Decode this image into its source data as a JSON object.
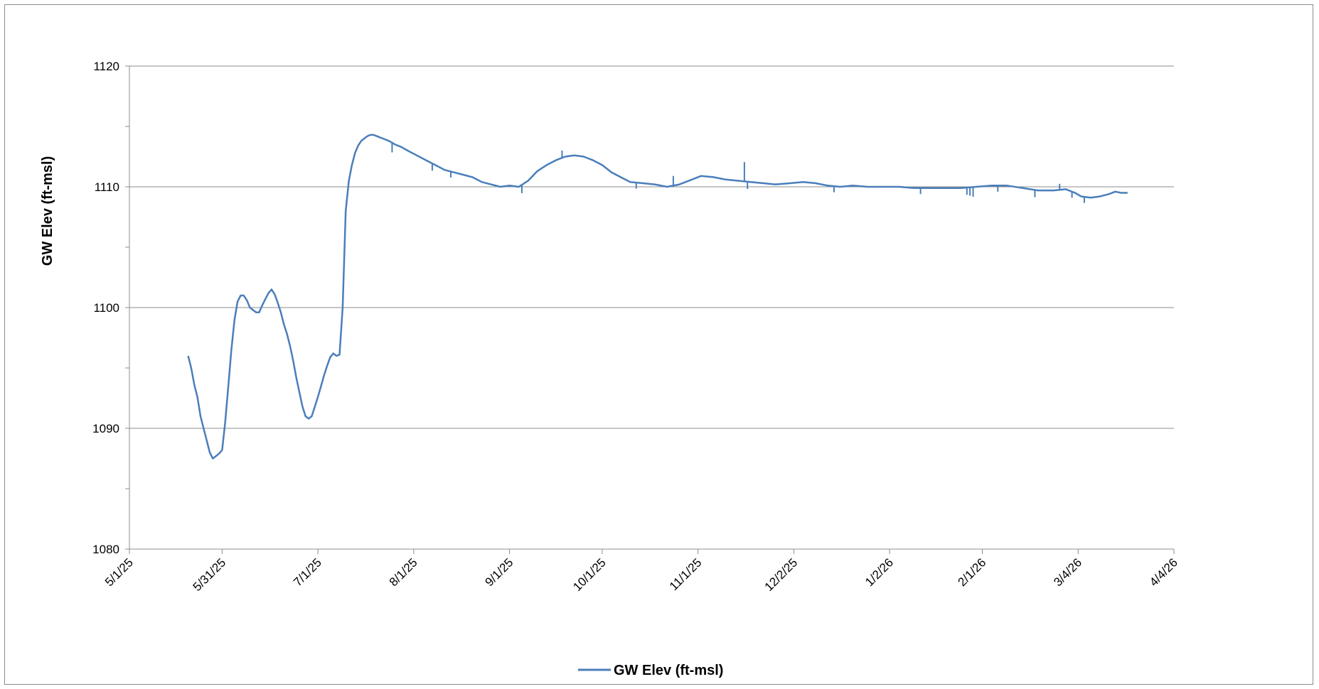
{
  "chart_data": {
    "type": "line",
    "title": "",
    "xlabel": "",
    "ylabel": "GW Elev (ft-msl)",
    "legend_position": "bottom",
    "grid": "horizontal major gridlines",
    "xlim": [
      "2025-05-01",
      "2026-04-04"
    ],
    "ylim": [
      1080,
      1120
    ],
    "y_major_step": 10,
    "y_minor_step": 5,
    "x_tick_labels": [
      "5/1/25",
      "5/31/25",
      "7/1/25",
      "8/1/25",
      "9/1/25",
      "10/1/25",
      "11/1/25",
      "12/2/25",
      "1/2/26",
      "2/1/26",
      "3/4/26",
      "4/4/26"
    ],
    "x_tick_dates": [
      "2025-05-01",
      "2025-05-31",
      "2025-07-01",
      "2025-08-01",
      "2025-09-01",
      "2025-10-01",
      "2025-11-01",
      "2025-12-02",
      "2026-01-02",
      "2026-02-01",
      "2026-03-04",
      "2026-04-04"
    ],
    "y_tick_labels": [
      "1080",
      "1090",
      "1100",
      "1110",
      "1120"
    ],
    "series": [
      {
        "name": "GW Elev (ft-msl)",
        "color": "#4a7ebb",
        "points": [
          [
            "2025-05-20",
            1096.0
          ],
          [
            "2025-05-21",
            1095.0
          ],
          [
            "2025-05-22",
            1093.6
          ],
          [
            "2025-05-23",
            1092.6
          ],
          [
            "2025-05-24",
            1091.0
          ],
          [
            "2025-05-25",
            1090.0
          ],
          [
            "2025-05-26",
            1089.0
          ],
          [
            "2025-05-27",
            1088.0
          ],
          [
            "2025-05-28",
            1087.5
          ],
          [
            "2025-05-29",
            1087.7
          ],
          [
            "2025-05-30",
            1087.9
          ],
          [
            "2025-05-31",
            1088.2
          ],
          [
            "2025-06-01",
            1090.5
          ],
          [
            "2025-06-02",
            1093.5
          ],
          [
            "2025-06-03",
            1096.5
          ],
          [
            "2025-06-04",
            1099.0
          ],
          [
            "2025-06-05",
            1100.5
          ],
          [
            "2025-06-06",
            1101.0
          ],
          [
            "2025-06-07",
            1101.0
          ],
          [
            "2025-06-08",
            1100.6
          ],
          [
            "2025-06-09",
            1100.0
          ],
          [
            "2025-06-10",
            1099.8
          ],
          [
            "2025-06-11",
            1099.6
          ],
          [
            "2025-06-12",
            1099.6
          ],
          [
            "2025-06-13",
            1100.2
          ],
          [
            "2025-06-14",
            1100.7
          ],
          [
            "2025-06-15",
            1101.2
          ],
          [
            "2025-06-16",
            1101.5
          ],
          [
            "2025-06-17",
            1101.1
          ],
          [
            "2025-06-18",
            1100.4
          ],
          [
            "2025-06-19",
            1099.6
          ],
          [
            "2025-06-20",
            1098.6
          ],
          [
            "2025-06-21",
            1097.8
          ],
          [
            "2025-06-22",
            1096.8
          ],
          [
            "2025-06-23",
            1095.6
          ],
          [
            "2025-06-24",
            1094.2
          ],
          [
            "2025-06-25",
            1093.0
          ],
          [
            "2025-06-26",
            1091.8
          ],
          [
            "2025-06-27",
            1091.0
          ],
          [
            "2025-06-28",
            1090.8
          ],
          [
            "2025-06-29",
            1091.0
          ],
          [
            "2025-06-30",
            1091.8
          ],
          [
            "2025-07-01",
            1092.6
          ],
          [
            "2025-07-02",
            1093.5
          ],
          [
            "2025-07-03",
            1094.4
          ],
          [
            "2025-07-04",
            1095.2
          ],
          [
            "2025-07-05",
            1095.9
          ],
          [
            "2025-07-06",
            1096.2
          ],
          [
            "2025-07-07",
            1096.0
          ],
          [
            "2025-07-08",
            1096.1
          ],
          [
            "2025-07-09",
            1100.0
          ],
          [
            "2025-07-10",
            1108.0
          ],
          [
            "2025-07-11",
            1110.5
          ],
          [
            "2025-07-12",
            1111.8
          ],
          [
            "2025-07-13",
            1112.8
          ],
          [
            "2025-07-14",
            1113.4
          ],
          [
            "2025-07-15",
            1113.8
          ],
          [
            "2025-07-16",
            1114.0
          ],
          [
            "2025-07-17",
            1114.2
          ],
          [
            "2025-07-18",
            1114.3
          ],
          [
            "2025-07-19",
            1114.3
          ],
          [
            "2025-07-20",
            1114.2
          ],
          [
            "2025-07-21",
            1114.1
          ],
          [
            "2025-07-22",
            1114.0
          ],
          [
            "2025-07-24",
            1113.8
          ],
          [
            "2025-07-26",
            1113.5
          ],
          [
            "2025-07-28",
            1113.3
          ],
          [
            "2025-07-30",
            1113.0
          ],
          [
            "2025-08-02",
            1112.6
          ],
          [
            "2025-08-05",
            1112.2
          ],
          [
            "2025-08-08",
            1111.8
          ],
          [
            "2025-08-11",
            1111.4
          ],
          [
            "2025-08-14",
            1111.2
          ],
          [
            "2025-08-17",
            1111.0
          ],
          [
            "2025-08-20",
            1110.8
          ],
          [
            "2025-08-23",
            1110.4
          ],
          [
            "2025-08-26",
            1110.2
          ],
          [
            "2025-08-29",
            1110.0
          ],
          [
            "2025-09-01",
            1110.1
          ],
          [
            "2025-09-04",
            1110.0
          ],
          [
            "2025-09-07",
            1110.5
          ],
          [
            "2025-09-10",
            1111.3
          ],
          [
            "2025-09-13",
            1111.8
          ],
          [
            "2025-09-16",
            1112.2
          ],
          [
            "2025-09-19",
            1112.5
          ],
          [
            "2025-09-22",
            1112.6
          ],
          [
            "2025-09-25",
            1112.5
          ],
          [
            "2025-09-28",
            1112.2
          ],
          [
            "2025-10-01",
            1111.8
          ],
          [
            "2025-10-04",
            1111.2
          ],
          [
            "2025-10-07",
            1110.8
          ],
          [
            "2025-10-10",
            1110.4
          ],
          [
            "2025-10-14",
            1110.3
          ],
          [
            "2025-10-18",
            1110.2
          ],
          [
            "2025-10-22",
            1110.0
          ],
          [
            "2025-10-26",
            1110.2
          ],
          [
            "2025-10-30",
            1110.6
          ],
          [
            "2025-11-02",
            1110.9
          ],
          [
            "2025-11-06",
            1110.8
          ],
          [
            "2025-11-10",
            1110.6
          ],
          [
            "2025-11-14",
            1110.5
          ],
          [
            "2025-11-18",
            1110.4
          ],
          [
            "2025-11-22",
            1110.3
          ],
          [
            "2025-11-26",
            1110.2
          ],
          [
            "2025-12-01",
            1110.3
          ],
          [
            "2025-12-05",
            1110.4
          ],
          [
            "2025-12-09",
            1110.3
          ],
          [
            "2025-12-13",
            1110.1
          ],
          [
            "2025-12-17",
            1110.0
          ],
          [
            "2025-12-21",
            1110.1
          ],
          [
            "2025-12-26",
            1110.0
          ],
          [
            "2025-12-31",
            1110.0
          ],
          [
            "2026-01-05",
            1110.0
          ],
          [
            "2026-01-10",
            1109.9
          ],
          [
            "2026-01-15",
            1109.9
          ],
          [
            "2026-01-20",
            1109.9
          ],
          [
            "2026-01-25",
            1109.9
          ],
          [
            "2026-01-30",
            1110.0
          ],
          [
            "2026-02-04",
            1110.1
          ],
          [
            "2026-02-09",
            1110.1
          ],
          [
            "2026-02-14",
            1109.9
          ],
          [
            "2026-02-19",
            1109.7
          ],
          [
            "2026-02-24",
            1109.7
          ],
          [
            "2026-02-28",
            1109.8
          ],
          [
            "2026-03-03",
            1109.5
          ],
          [
            "2026-03-05",
            1109.2
          ],
          [
            "2026-03-08",
            1109.1
          ],
          [
            "2026-03-11",
            1109.2
          ],
          [
            "2026-03-14",
            1109.4
          ],
          [
            "2026-03-16",
            1109.6
          ],
          [
            "2026-03-18",
            1109.5
          ],
          [
            "2026-03-20",
            1109.5
          ]
        ],
        "spikes": [
          [
            "2025-07-25",
            -0.8
          ],
          [
            "2025-08-07",
            -0.6
          ],
          [
            "2025-08-13",
            -0.5
          ],
          [
            "2025-09-05",
            -0.7
          ],
          [
            "2025-09-18",
            0.6
          ],
          [
            "2025-10-12",
            -0.5
          ],
          [
            "2025-10-24",
            0.8
          ],
          [
            "2025-11-16",
            1.6
          ],
          [
            "2025-11-17",
            -0.6
          ],
          [
            "2025-12-15",
            -0.5
          ],
          [
            "2026-01-12",
            -0.5
          ],
          [
            "2026-01-27",
            -0.6
          ],
          [
            "2026-01-28",
            -0.7
          ],
          [
            "2026-01-29",
            -0.8
          ],
          [
            "2026-02-06",
            -0.5
          ],
          [
            "2026-02-18",
            -0.6
          ],
          [
            "2026-02-26",
            0.5
          ],
          [
            "2026-03-02",
            -0.5
          ],
          [
            "2026-03-06",
            -0.5
          ]
        ]
      }
    ]
  }
}
